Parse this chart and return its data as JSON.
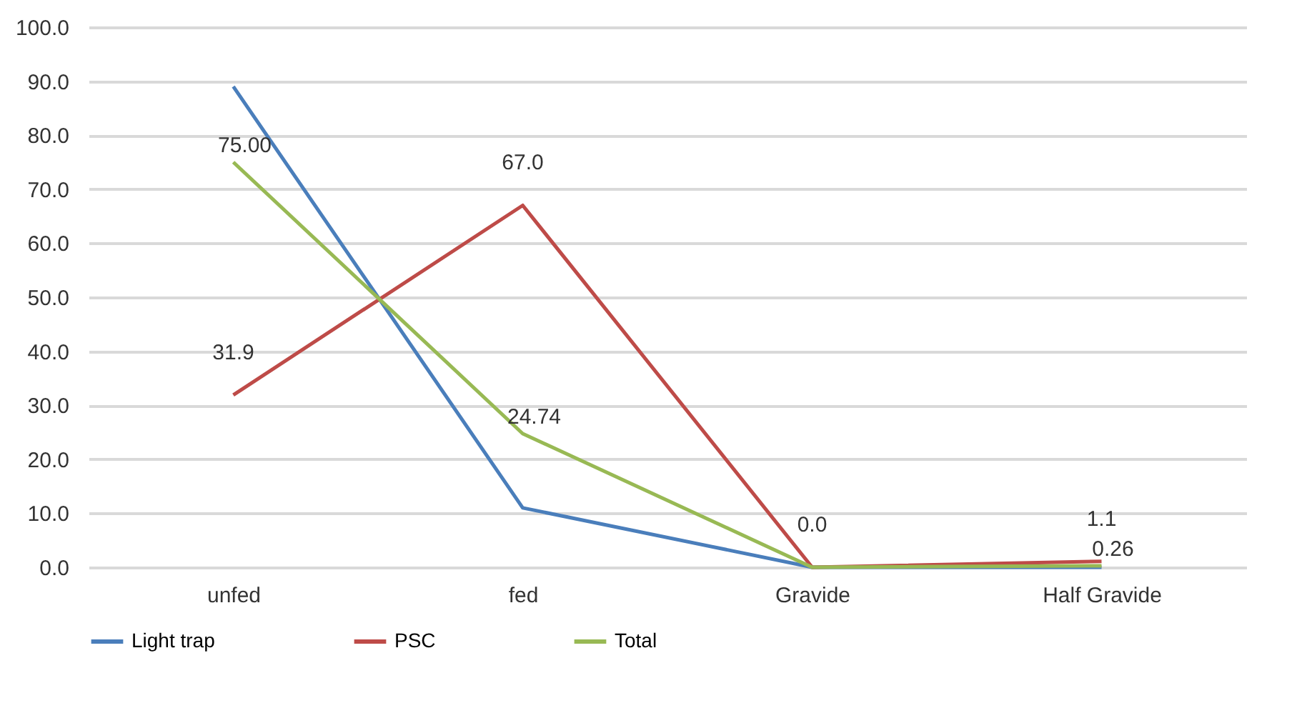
{
  "chart_data": {
    "type": "line",
    "categories": [
      "unfed",
      "fed",
      "Gravide",
      "Half Gravide"
    ],
    "series": [
      {
        "name": "Light trap",
        "color": "#4a7ebb",
        "values": [
          89,
          11,
          0,
          0
        ]
      },
      {
        "name": "PSC",
        "color": "#be4b48",
        "values": [
          31.9,
          67.0,
          0.0,
          1.1
        ],
        "value_labels": [
          "31.9",
          "67.0",
          "0.0",
          "1.1"
        ]
      },
      {
        "name": "Total",
        "color": "#98b954",
        "values": [
          75.0,
          24.74,
          0,
          0.26
        ],
        "value_labels": [
          "75.00",
          "24.74",
          null,
          "0.26"
        ]
      }
    ],
    "ylim": [
      0,
      100
    ],
    "yticks": [
      {
        "value": 0,
        "label": "0.0"
      },
      {
        "value": 10,
        "label": "10.0"
      },
      {
        "value": 20,
        "label": "20.0"
      },
      {
        "value": 30,
        "label": "30.0"
      },
      {
        "value": 40,
        "label": "40.0"
      },
      {
        "value": 50,
        "label": "50.0"
      },
      {
        "value": 60,
        "label": "60.0"
      },
      {
        "value": 70,
        "label": "70.0"
      },
      {
        "value": 80,
        "label": "80.0"
      },
      {
        "value": 90,
        "label": "90.0"
      },
      {
        "value": 100,
        "label": "100.0"
      }
    ],
    "grid": "y",
    "legend": "bottom",
    "marker": "none",
    "line_style": "solid"
  }
}
